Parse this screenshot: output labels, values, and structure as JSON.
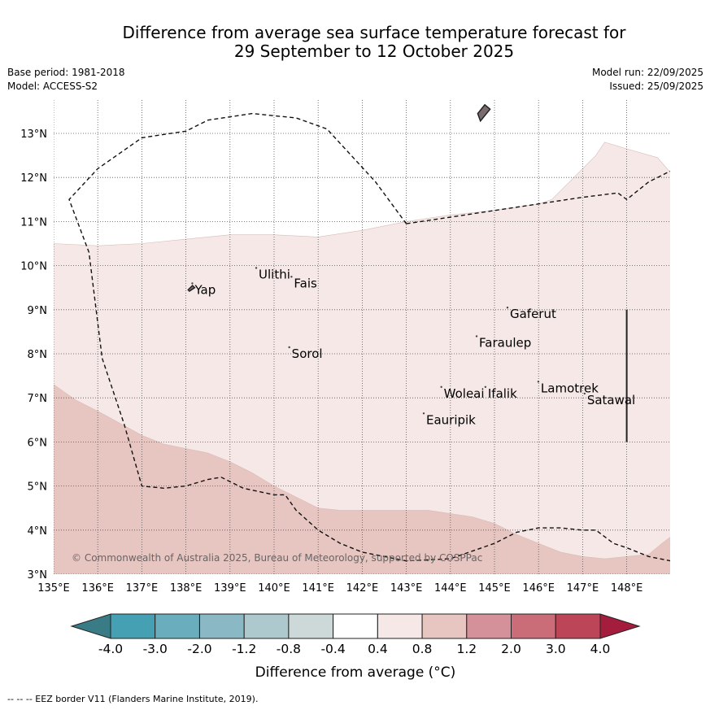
{
  "title": {
    "line1": "Difference from average sea surface temperature forecast for",
    "line2": "29 September to 12 October 2025"
  },
  "meta_left": {
    "base_period": "Base period: 1981-2018",
    "model": "Model: ACCESS-S2"
  },
  "meta_right": {
    "model_run": "Model run: 22/09/2025",
    "issued": "Issued: 25/09/2025"
  },
  "map": {
    "extent": {
      "lon_min": 135,
      "lon_max": 149,
      "lat_min": 3,
      "lat_max": 13.8
    },
    "lon_ticks": [
      {
        "lon": 135,
        "label": "135°E"
      },
      {
        "lon": 136,
        "label": "136°E"
      },
      {
        "lon": 137,
        "label": "137°E"
      },
      {
        "lon": 138,
        "label": "138°E"
      },
      {
        "lon": 139,
        "label": "139°E"
      },
      {
        "lon": 140,
        "label": "140°E"
      },
      {
        "lon": 141,
        "label": "141°E"
      },
      {
        "lon": 142,
        "label": "142°E"
      },
      {
        "lon": 143,
        "label": "143°E"
      },
      {
        "lon": 144,
        "label": "144°E"
      },
      {
        "lon": 145,
        "label": "145°E"
      },
      {
        "lon": 146,
        "label": "146°E"
      },
      {
        "lon": 147,
        "label": "147°E"
      },
      {
        "lon": 148,
        "label": "148°E"
      }
    ],
    "lat_ticks": [
      {
        "lat": 3,
        "label": "3°N"
      },
      {
        "lat": 4,
        "label": "4°N"
      },
      {
        "lat": 5,
        "label": "5°N"
      },
      {
        "lat": 6,
        "label": "6°N"
      },
      {
        "lat": 7,
        "label": "7°N"
      },
      {
        "lat": 8,
        "label": "8°N"
      },
      {
        "lat": 9,
        "label": "9°N"
      },
      {
        "lat": 10,
        "label": "10°N"
      },
      {
        "lat": 11,
        "label": "11°N"
      },
      {
        "lat": 12,
        "label": "12°N"
      },
      {
        "lat": 13,
        "label": "13°N"
      }
    ],
    "places": [
      {
        "name": "Yap",
        "lon": 138.2,
        "lat": 9.45
      },
      {
        "name": "Ulithi",
        "lon": 139.65,
        "lat": 9.8
      },
      {
        "name": "Fais",
        "lon": 140.45,
        "lat": 9.6
      },
      {
        "name": "Gaferut",
        "lon": 145.35,
        "lat": 8.9
      },
      {
        "name": "Faraulep",
        "lon": 144.65,
        "lat": 8.25
      },
      {
        "name": "Sorol",
        "lon": 140.4,
        "lat": 8.0
      },
      {
        "name": "Lamotrek",
        "lon": 146.05,
        "lat": 7.22
      },
      {
        "name": "Woleai",
        "lon": 143.85,
        "lat": 7.1
      },
      {
        "name": "Ifalik",
        "lon": 144.85,
        "lat": 7.1
      },
      {
        "name": "Satawal",
        "lon": 147.1,
        "lat": 6.95
      },
      {
        "name": "Eauripik",
        "lon": 143.45,
        "lat": 6.5
      }
    ],
    "anomaly_bands": [
      {
        "range": "0.4 to 0.8",
        "color": "#f5e8e6",
        "top_edge": [
          [
            135,
            10.5
          ],
          [
            136,
            10.45
          ],
          [
            137,
            10.5
          ],
          [
            138,
            10.6
          ],
          [
            139,
            10.7
          ],
          [
            140,
            10.7
          ],
          [
            141,
            10.65
          ],
          [
            142,
            10.8
          ],
          [
            143,
            11.0
          ],
          [
            144,
            11.15
          ],
          [
            145,
            11.25
          ],
          [
            146,
            11.4
          ],
          [
            146.3,
            11.5
          ],
          [
            146.8,
            12.0
          ],
          [
            147.3,
            12.5
          ],
          [
            147.5,
            12.8
          ],
          [
            148,
            12.65
          ],
          [
            148.7,
            12.45
          ],
          [
            149,
            12.1
          ]
        ]
      },
      {
        "range": "0.8 to 1.2",
        "color": "#e7c5c1",
        "top_edge": [
          [
            135,
            7.3
          ],
          [
            135.5,
            6.95
          ],
          [
            136,
            6.7
          ],
          [
            137,
            6.15
          ],
          [
            137.5,
            5.95
          ],
          [
            138,
            5.85
          ],
          [
            138.5,
            5.75
          ],
          [
            139,
            5.55
          ],
          [
            139.5,
            5.3
          ],
          [
            140,
            5.0
          ],
          [
            140.5,
            4.75
          ],
          [
            141,
            4.5
          ],
          [
            141.5,
            4.45
          ],
          [
            142.5,
            4.45
          ],
          [
            143.5,
            4.45
          ],
          [
            144.5,
            4.3
          ],
          [
            145,
            4.15
          ],
          [
            145.5,
            3.9
          ],
          [
            146,
            3.7
          ],
          [
            146.5,
            3.5
          ],
          [
            147,
            3.4
          ],
          [
            147.5,
            3.35
          ],
          [
            148,
            3.4
          ],
          [
            148.5,
            3.45
          ],
          [
            148.8,
            3.7
          ],
          [
            149,
            3.85
          ]
        ]
      }
    ],
    "eez_border": [
      [
        [
          143,
          10.95
        ],
        [
          144,
          11.1
        ],
        [
          145,
          11.25
        ],
        [
          146,
          11.4
        ],
        [
          147,
          11.55
        ],
        [
          147.8,
          11.65
        ],
        [
          148,
          11.5
        ],
        [
          148.5,
          11.9
        ],
        [
          149,
          12.15
        ]
      ],
      [
        [
          143,
          10.95
        ],
        [
          142.3,
          11.9
        ],
        [
          141.2,
          13.1
        ],
        [
          140.5,
          13.35
        ],
        [
          139.5,
          13.45
        ],
        [
          138.5,
          13.3
        ],
        [
          138,
          13.05
        ],
        [
          137,
          12.9
        ],
        [
          136,
          12.2
        ],
        [
          135.35,
          11.5
        ],
        [
          135.8,
          10.3
        ],
        [
          136.1,
          7.9
        ],
        [
          136.6,
          6.4
        ],
        [
          137,
          5.0
        ],
        [
          137.5,
          4.95
        ],
        [
          138,
          5.0
        ],
        [
          138.5,
          5.15
        ],
        [
          138.8,
          5.2
        ],
        [
          139.3,
          4.95
        ],
        [
          140,
          4.8
        ],
        [
          140.25,
          4.8
        ],
        [
          140.5,
          4.45
        ],
        [
          141,
          4.0
        ],
        [
          141.5,
          3.7
        ],
        [
          142,
          3.5
        ],
        [
          143,
          3.3
        ],
        [
          144,
          3.35
        ],
        [
          145,
          3.7
        ],
        [
          145.5,
          3.95
        ],
        [
          146,
          4.05
        ],
        [
          146.5,
          4.05
        ],
        [
          147,
          4.0
        ],
        [
          147.3,
          4.0
        ],
        [
          147.7,
          3.7
        ],
        [
          148,
          3.6
        ],
        [
          148.5,
          3.4
        ],
        [
          149,
          3.3
        ]
      ]
    ],
    "islands": [
      {
        "name": "Guam",
        "points": [
          [
            144.68,
            13.28
          ],
          [
            144.9,
            13.55
          ],
          [
            144.78,
            13.65
          ],
          [
            144.62,
            13.45
          ]
        ]
      },
      {
        "name": "Yap island",
        "points": [
          [
            138.05,
            9.45
          ],
          [
            138.15,
            9.55
          ],
          [
            138.2,
            9.5
          ],
          [
            138.08,
            9.42
          ]
        ]
      }
    ],
    "vertical_marker": {
      "lon": 148.0,
      "lat_from": 6.0,
      "lat_to": 9.0
    },
    "copyright": "© Commonwealth of Australia 2025, Bureau of Meteorology, supported by COSPPac"
  },
  "colorbar": {
    "under_color": "#3a7c86",
    "over_color": "#a51d3c",
    "segments": [
      "#45a0b3",
      "#6aadbc",
      "#8ab8c4",
      "#aec9ce",
      "#cdd8d9",
      "#ffffff",
      "#f5e8e6",
      "#e7c5c1",
      "#d5919a",
      "#cb6d79",
      "#bd4558"
    ],
    "labels": [
      "-4.0",
      "-3.0",
      "-2.0",
      "-1.2",
      "-0.8",
      "-0.4",
      "0.4",
      "0.8",
      "1.2",
      "2.0",
      "3.0",
      "4.0"
    ],
    "title": "Difference from average (°C)"
  },
  "footer": "-- -- -- EEZ border V11 (Flanders Marine Institute, 2019)."
}
